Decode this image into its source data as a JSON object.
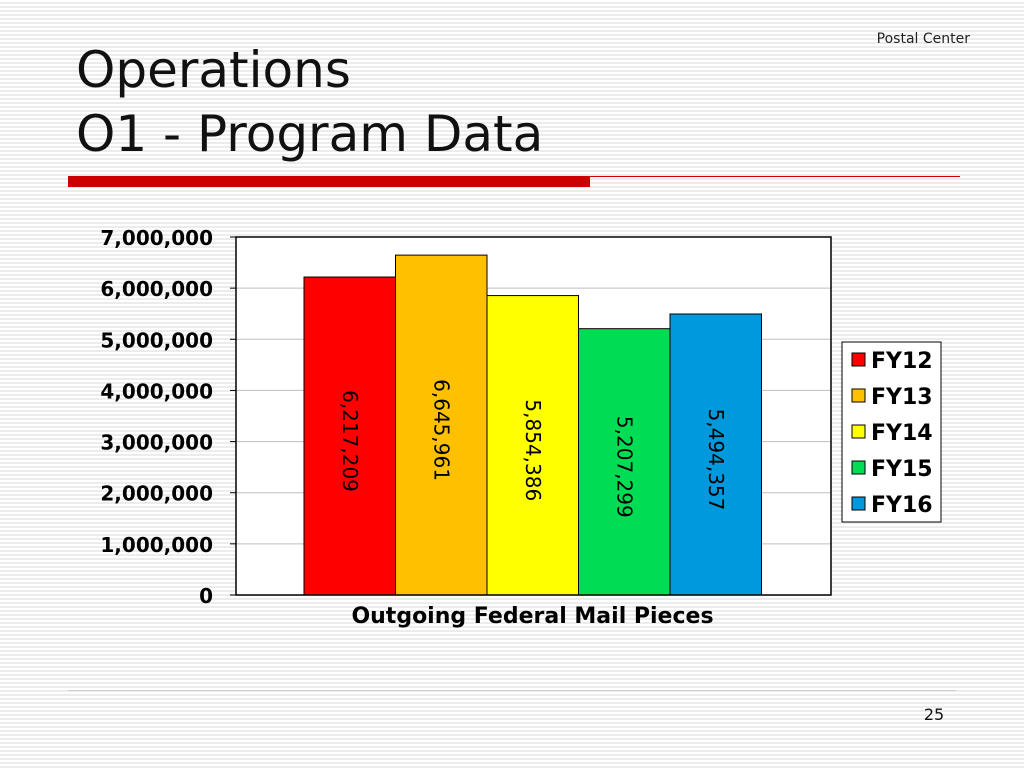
{
  "slide": {
    "header_note": "Postal Center",
    "title_line1": "Operations",
    "title_line2": "O1 - Program Data",
    "page_number": "25"
  },
  "colors": {
    "accent": "#cc0000"
  },
  "chart_data": {
    "type": "bar",
    "xlabel": "Outgoing Federal Mail Pieces",
    "ylabel": "",
    "ylim": [
      0,
      7000000
    ],
    "y_ticks": [
      {
        "value": 0,
        "label": "0"
      },
      {
        "value": 1000000,
        "label": "1,000,000"
      },
      {
        "value": 2000000,
        "label": "2,000,000"
      },
      {
        "value": 3000000,
        "label": "3,000,000"
      },
      {
        "value": 4000000,
        "label": "4,000,000"
      },
      {
        "value": 5000000,
        "label": "5,000,000"
      },
      {
        "value": 6000000,
        "label": "6,000,000"
      },
      {
        "value": 7000000,
        "label": "7,000,000"
      }
    ],
    "grid": true,
    "legend_position": "right",
    "series": [
      {
        "name": "FY12",
        "values": [
          6217209
        ],
        "label": "6,217,209",
        "color": "#ff0000"
      },
      {
        "name": "FY13",
        "values": [
          6645961
        ],
        "label": "6,645,961",
        "color": "#ffc000"
      },
      {
        "name": "FY14",
        "values": [
          5854386
        ],
        "label": "5,854,386",
        "color": "#ffff00"
      },
      {
        "name": "FY15",
        "values": [
          5207299
        ],
        "label": "5,207,299",
        "color": "#00dd55"
      },
      {
        "name": "FY16",
        "values": [
          5494357
        ],
        "label": "5,494,357",
        "color": "#0099dd"
      }
    ]
  }
}
